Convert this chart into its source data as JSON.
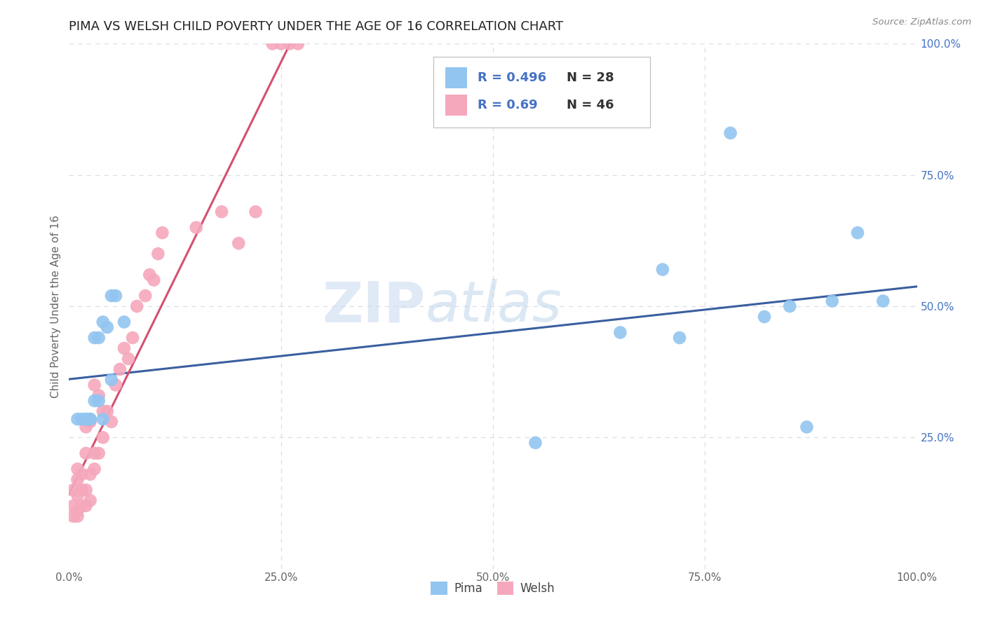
{
  "title": "PIMA VS WELSH CHILD POVERTY UNDER THE AGE OF 16 CORRELATION CHART",
  "source": "Source: ZipAtlas.com",
  "ylabel": "Child Poverty Under the Age of 16",
  "watermark_zip": "ZIP",
  "watermark_atlas": "atlas",
  "pima_r": 0.496,
  "pima_n": 28,
  "welsh_r": 0.69,
  "welsh_n": 46,
  "pima_color": "#92C5F0",
  "welsh_color": "#F5A8BC",
  "pima_line_color": "#3A5FA0",
  "welsh_line_color": "#D45070",
  "background_color": "#FFFFFF",
  "grid_color": "#DCDCE8",
  "right_tick_color": "#4472C4",
  "xlim": [
    0.0,
    1.0
  ],
  "ylim": [
    0.0,
    1.0
  ],
  "pima_x": [
    0.01,
    0.015,
    0.02,
    0.02,
    0.025,
    0.025,
    0.03,
    0.03,
    0.035,
    0.035,
    0.04,
    0.04,
    0.045,
    0.05,
    0.05,
    0.055,
    0.065,
    0.55,
    0.65,
    0.7,
    0.72,
    0.78,
    0.82,
    0.85,
    0.87,
    0.9,
    0.93,
    0.96
  ],
  "pima_y": [
    0.285,
    0.285,
    0.285,
    0.285,
    0.285,
    0.285,
    0.44,
    0.32,
    0.44,
    0.32,
    0.285,
    0.47,
    0.46,
    0.36,
    0.52,
    0.52,
    0.47,
    0.24,
    0.45,
    0.57,
    0.44,
    0.83,
    0.48,
    0.5,
    0.27,
    0.51,
    0.64,
    0.51
  ],
  "welsh_x": [
    0.005,
    0.005,
    0.005,
    0.01,
    0.01,
    0.01,
    0.01,
    0.01,
    0.015,
    0.015,
    0.015,
    0.02,
    0.02,
    0.02,
    0.02,
    0.025,
    0.025,
    0.025,
    0.03,
    0.03,
    0.03,
    0.035,
    0.035,
    0.04,
    0.04,
    0.045,
    0.05,
    0.055,
    0.06,
    0.065,
    0.07,
    0.075,
    0.08,
    0.09,
    0.095,
    0.1,
    0.105,
    0.11,
    0.15,
    0.18,
    0.2,
    0.22,
    0.24,
    0.25,
    0.26,
    0.27
  ],
  "welsh_y": [
    0.1,
    0.12,
    0.15,
    0.1,
    0.11,
    0.14,
    0.17,
    0.19,
    0.12,
    0.15,
    0.18,
    0.12,
    0.15,
    0.22,
    0.27,
    0.13,
    0.18,
    0.28,
    0.19,
    0.22,
    0.35,
    0.22,
    0.33,
    0.25,
    0.3,
    0.3,
    0.28,
    0.35,
    0.38,
    0.42,
    0.4,
    0.44,
    0.5,
    0.52,
    0.56,
    0.55,
    0.6,
    0.64,
    0.65,
    0.68,
    0.62,
    0.68,
    1.0,
    1.0,
    1.0,
    1.0
  ]
}
